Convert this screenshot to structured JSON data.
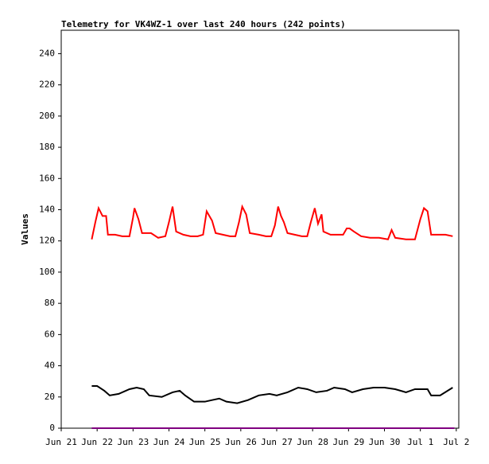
{
  "chart_data": {
    "type": "line",
    "title": "Telemetry for VK4WZ-1 over last 240 hours (242 points)",
    "y_label": "Values",
    "xlim": [
      0,
      11.07
    ],
    "xticks": [
      {
        "value": 0,
        "label": "Jun 21"
      },
      {
        "value": 1,
        "label": "Jun 22"
      },
      {
        "value": 2,
        "label": "Jun 23"
      },
      {
        "value": 3,
        "label": "Jun 24"
      },
      {
        "value": 4,
        "label": "Jun 25"
      },
      {
        "value": 5,
        "label": "Jun 26"
      },
      {
        "value": 6,
        "label": "Jun 27"
      },
      {
        "value": 7,
        "label": "Jun 28"
      },
      {
        "value": 8,
        "label": "Jun 29"
      },
      {
        "value": 9,
        "label": "Jun 30"
      },
      {
        "value": 10,
        "label": "Jul 1"
      },
      {
        "value": 11,
        "label": "Jul 2"
      }
    ],
    "ylim": [
      0,
      255
    ],
    "yticks": [
      0,
      20,
      40,
      60,
      80,
      100,
      120,
      140,
      160,
      180,
      200,
      220,
      240
    ],
    "series": [
      {
        "color": "#ff0000",
        "x": [
          0.85,
          0.95,
          1.04,
          1.15,
          1.25,
          1.3,
          1.5,
          1.7,
          1.9,
          2.0,
          2.04,
          2.15,
          2.25,
          2.5,
          2.7,
          2.9,
          3.0,
          3.1,
          3.2,
          3.4,
          3.6,
          3.8,
          3.95,
          4.05,
          4.2,
          4.3,
          4.5,
          4.7,
          4.85,
          4.95,
          5.04,
          5.15,
          5.25,
          5.5,
          5.7,
          5.85,
          5.95,
          6.04,
          6.12,
          6.2,
          6.3,
          6.5,
          6.7,
          6.85,
          6.95,
          7.06,
          7.15,
          7.25,
          7.3,
          7.5,
          7.7,
          7.85,
          7.95,
          8.03,
          8.15,
          8.35,
          8.6,
          8.85,
          9.1,
          9.2,
          9.3,
          9.6,
          9.85,
          10.0,
          10.1,
          10.2,
          10.3,
          10.5,
          10.7,
          10.9
        ],
        "values": [
          121,
          132,
          141,
          136,
          136,
          124,
          124,
          123,
          123,
          135,
          141,
          134,
          125,
          125,
          122,
          123,
          132,
          142,
          126,
          124,
          123,
          123,
          124,
          139,
          133,
          125,
          124,
          123,
          123,
          132,
          142,
          137,
          125,
          124,
          123,
          123,
          130,
          142,
          136,
          132,
          125,
          124,
          123,
          123,
          132,
          141,
          131,
          137,
          126,
          124,
          124,
          124,
          128,
          128,
          126,
          123,
          122,
          122,
          121,
          127,
          122,
          121,
          121,
          134,
          141,
          139,
          124,
          124,
          124,
          123
        ]
      },
      {
        "color": "#000000",
        "x": [
          0.85,
          1.0,
          1.2,
          1.35,
          1.6,
          1.9,
          2.1,
          2.3,
          2.45,
          2.8,
          3.1,
          3.3,
          3.45,
          3.7,
          4.0,
          4.2,
          4.4,
          4.6,
          4.9,
          5.2,
          5.5,
          5.8,
          6.0,
          6.3,
          6.6,
          6.85,
          7.1,
          7.4,
          7.6,
          7.9,
          8.1,
          8.4,
          8.7,
          9.0,
          9.3,
          9.6,
          9.85,
          10.2,
          10.3,
          10.55,
          10.9
        ],
        "values": [
          27,
          27,
          24,
          21,
          22,
          25,
          26,
          25,
          21,
          20,
          23,
          24,
          21,
          17,
          17,
          18,
          19,
          17,
          16,
          18,
          21,
          22,
          21,
          23,
          26,
          25,
          23,
          24,
          26,
          25,
          23,
          25,
          26,
          26,
          25,
          23,
          25,
          25,
          21,
          21,
          26
        ]
      },
      {
        "color": "#800080",
        "x": [
          0.85,
          10.95
        ],
        "values": [
          0,
          0
        ]
      }
    ]
  }
}
